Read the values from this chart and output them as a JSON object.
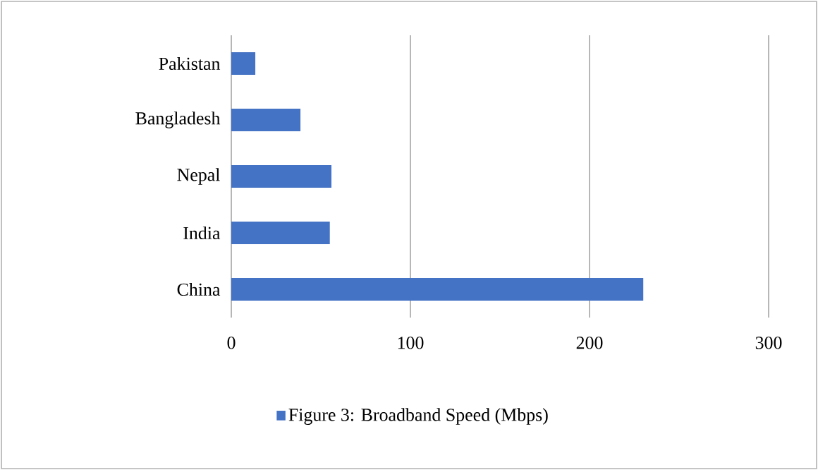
{
  "chart_data": {
    "type": "bar",
    "orientation": "horizontal",
    "categories": [
      "Pakistan",
      "Bangladesh",
      "Nepal",
      "India",
      "China"
    ],
    "series": [
      {
        "name": "Figure 3: Broadband Speed (Mbps)",
        "color": "#4472c4",
        "values": [
          13.4,
          38.6,
          55.9,
          55,
          230
        ]
      }
    ],
    "xlim": [
      0,
      300
    ],
    "xticks": [
      0,
      100,
      200,
      300
    ],
    "grid": "x",
    "legend": "bottom"
  }
}
